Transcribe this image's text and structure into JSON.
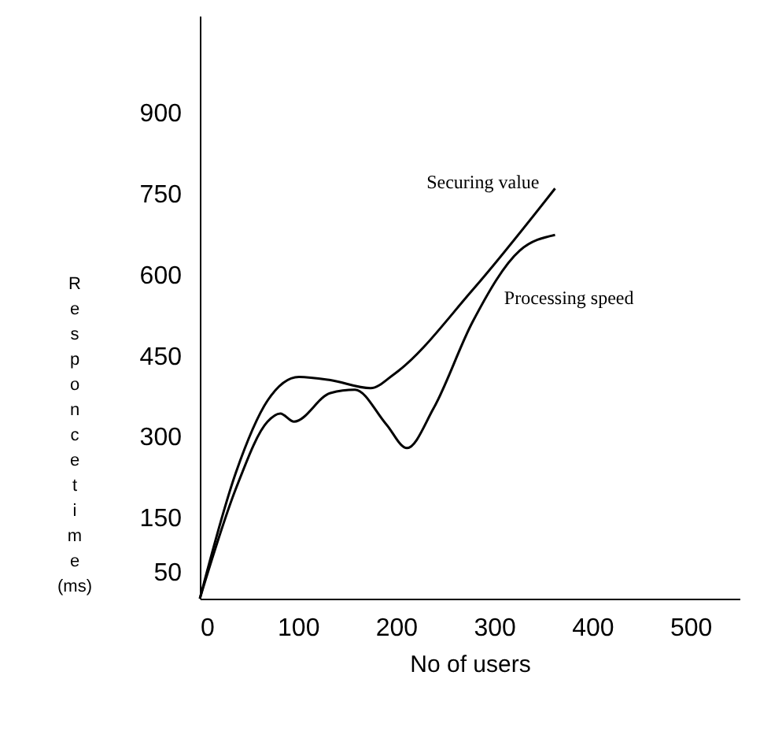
{
  "chart_data": {
    "type": "line",
    "xlabel": "No of users",
    "ylabel": "Responce time (ms)",
    "xlim": [
      0,
      550
    ],
    "ylim": [
      0,
      1080
    ],
    "xticks": [
      0,
      100,
      200,
      300,
      400,
      500
    ],
    "yticks": [
      50,
      150,
      300,
      450,
      600,
      750,
      900
    ],
    "series": [
      {
        "name": "Securing value",
        "color": "#000000",
        "x": [
          0,
          37,
          69,
          101,
          133,
          174,
          198,
          278,
          362
        ],
        "values": [
          0,
          235,
          367,
          411,
          405,
          390,
          416,
          572,
          760
        ]
      },
      {
        "name": "Processing speed",
        "color": "#000000",
        "x": [
          0,
          37,
          69,
          82,
          96,
          133,
          158,
          190,
          211,
          238,
          278,
          326,
          362
        ],
        "values": [
          0,
          205,
          328,
          343,
          328,
          381,
          387,
          323,
          279,
          352,
          513,
          645,
          674
        ]
      }
    ]
  }
}
